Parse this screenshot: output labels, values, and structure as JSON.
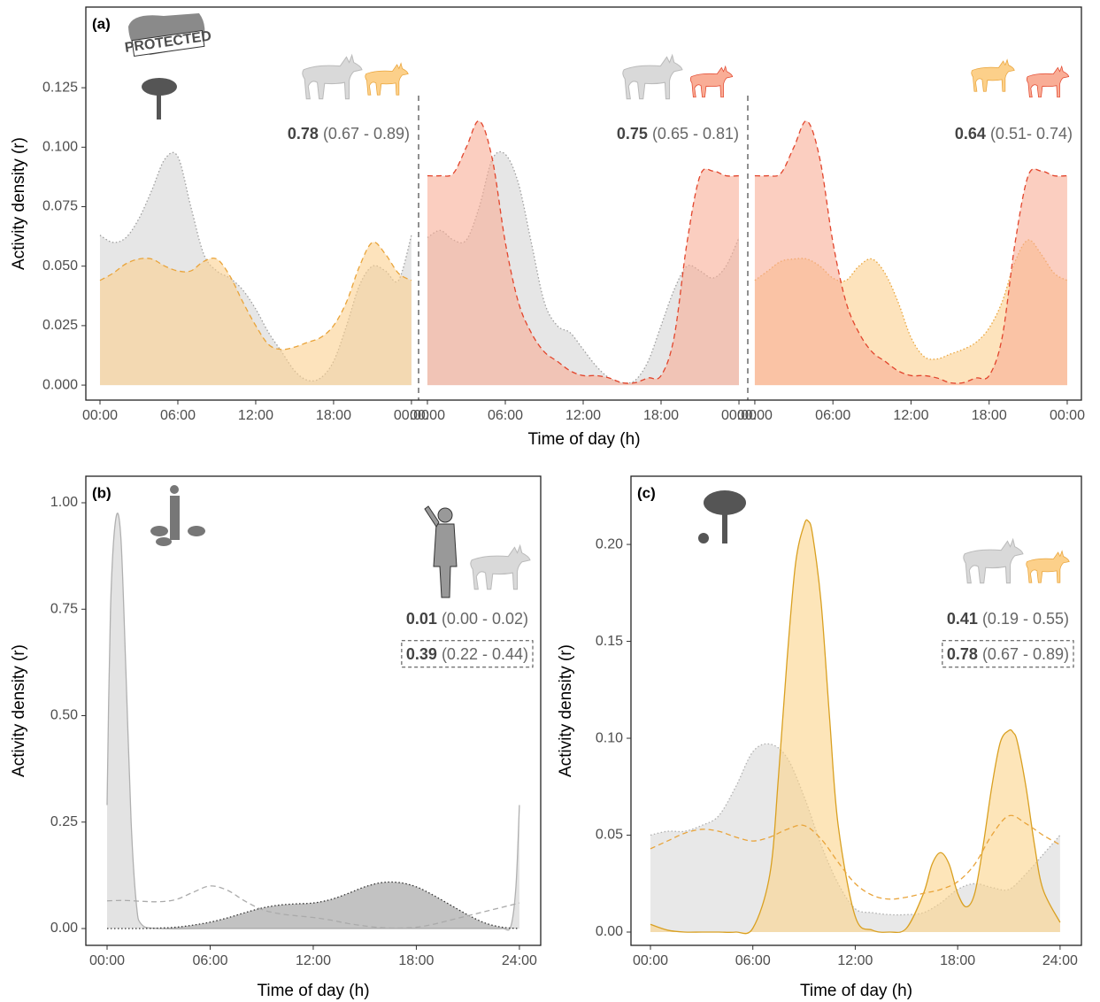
{
  "chart_data": [
    {
      "type": "area",
      "panel_label": "(a)",
      "ylabel": "Activity density (r)",
      "xlabel": "Time of day (h)",
      "icon_text": "PROTECTED",
      "ylim": [
        -0.0063,
        0.1589
      ],
      "yticks": [
        {
          "value": 0,
          "label": "0.000"
        },
        0.025,
        {
          "value": 0.05,
          "label": "0.050"
        },
        0.075,
        {
          "value": 0.1,
          "label": "0.100"
        },
        0.125
      ],
      "panels": [
        {
          "xlim": [
            -1.09,
            24.55
          ],
          "xticks": [
            {
              "value": 0,
              "label": "00:00"
            },
            {
              "value": 6,
              "label": "06:00"
            },
            {
              "value": 12,
              "label": "12:00"
            },
            {
              "value": 18,
              "label": "18:00"
            },
            {
              "value": 24,
              "label": "00:00"
            }
          ],
          "annotation": {
            "estimate": "0.78",
            "ci": "(0.67 - 0.89)"
          },
          "series": [
            {
              "color": "#9e9e9e",
              "fill_color": "#d6d6d6",
              "line": "dotted",
              "x": [
                0,
                1,
                2,
                3,
                4,
                5,
                6,
                7,
                8,
                9,
                10,
                11,
                12,
                13,
                14,
                15,
                16,
                17,
                18,
                19,
                20,
                21,
                22,
                23,
                24
              ],
              "values": [
                0.063,
                0.06,
                0.062,
                0.07,
                0.082,
                0.095,
                0.096,
                0.075,
                0.055,
                0.048,
                0.045,
                0.04,
                0.032,
                0.022,
                0.014,
                0.006,
                0.002,
                0.003,
                0.01,
                0.025,
                0.042,
                0.05,
                0.048,
                0.044,
                0.063
              ]
            },
            {
              "color": "#e9a43a",
              "fill_color": "#fbd08f",
              "line": "dashed",
              "x": [
                0,
                1,
                2,
                3,
                4,
                5,
                6,
                7,
                8,
                9,
                10,
                11,
                12,
                13,
                14,
                15,
                16,
                17,
                18,
                19,
                20,
                21,
                22,
                23,
                24
              ],
              "values": [
                0.044,
                0.047,
                0.051,
                0.053,
                0.053,
                0.05,
                0.048,
                0.048,
                0.052,
                0.053,
                0.046,
                0.035,
                0.025,
                0.017,
                0.015,
                0.016,
                0.018,
                0.02,
                0.025,
                0.035,
                0.05,
                0.06,
                0.055,
                0.047,
                0.044
              ]
            }
          ]
        },
        {
          "xlim": [
            -0.68,
            24.68
          ],
          "xticks": [
            {
              "value": 0,
              "label": "00:00"
            },
            {
              "value": 6,
              "label": "06:00"
            },
            {
              "value": 12,
              "label": "12:00"
            },
            {
              "value": 18,
              "label": "18:00"
            },
            {
              "value": 24,
              "label": "00:00"
            }
          ],
          "annotation": {
            "estimate": "0.75",
            "ci": "(0.65 - 0.81)"
          },
          "series": [
            {
              "color": "#9e9e9e",
              "fill_color": "#d6d6d6",
              "line": "dotted",
              "x": [
                0,
                1,
                2,
                3,
                4,
                5,
                6,
                7,
                8,
                9,
                10,
                11,
                12,
                13,
                14,
                15,
                16,
                17,
                18,
                19,
                20,
                21,
                22,
                23,
                24
              ],
              "values": [
                0.062,
                0.065,
                0.061,
                0.061,
                0.075,
                0.095,
                0.097,
                0.085,
                0.06,
                0.035,
                0.025,
                0.022,
                0.015,
                0.008,
                0.003,
                0.001,
                0.002,
                0.01,
                0.025,
                0.04,
                0.05,
                0.048,
                0.045,
                0.05,
                0.062
              ]
            },
            {
              "color": "#e2452c",
              "fill_color": "#f9ad96",
              "line": "dashed",
              "x": [
                0,
                1,
                2,
                3,
                4,
                5,
                6,
                7,
                8,
                9,
                10,
                11,
                12,
                13,
                14,
                15,
                16,
                17,
                18,
                19,
                20,
                21,
                22,
                23,
                24
              ],
              "values": [
                0.088,
                0.088,
                0.089,
                0.1,
                0.111,
                0.095,
                0.06,
                0.035,
                0.022,
                0.014,
                0.01,
                0.006,
                0.004,
                0.004,
                0.003,
                0.001,
                0.001,
                0.003,
                0.004,
                0.02,
                0.06,
                0.088,
                0.09,
                0.088,
                0.088
              ]
            }
          ]
        },
        {
          "xlim": [
            -0.54,
            25.09
          ],
          "xticks": [
            {
              "value": 0,
              "label": "00:00"
            },
            {
              "value": 6,
              "label": "06:00"
            },
            {
              "value": 12,
              "label": "12:00"
            },
            {
              "value": 18,
              "label": "18:00"
            },
            {
              "value": 24,
              "label": "00:00"
            }
          ],
          "annotation": {
            "estimate": "0.64",
            "ci": "(0.51- 0.74)"
          },
          "series": [
            {
              "color": "#e9a43a",
              "fill_color": "#fbd08f",
              "line": "dotted",
              "x": [
                0,
                1,
                2,
                3,
                4,
                5,
                6,
                7,
                8,
                9,
                10,
                11,
                12,
                13,
                14,
                15,
                16,
                17,
                18,
                19,
                20,
                21,
                22,
                23,
                24
              ],
              "values": [
                0.044,
                0.048,
                0.052,
                0.053,
                0.053,
                0.05,
                0.045,
                0.044,
                0.05,
                0.053,
                0.047,
                0.035,
                0.02,
                0.012,
                0.011,
                0.013,
                0.015,
                0.018,
                0.024,
                0.035,
                0.052,
                0.061,
                0.055,
                0.047,
                0.044
              ]
            },
            {
              "color": "#e2452c",
              "fill_color": "#f9ad96",
              "line": "dashed",
              "x": [
                0,
                1,
                2,
                3,
                4,
                5,
                6,
                7,
                8,
                9,
                10,
                11,
                12,
                13,
                14,
                15,
                16,
                17,
                18,
                19,
                20,
                21,
                22,
                23,
                24
              ],
              "values": [
                0.088,
                0.088,
                0.089,
                0.1,
                0.111,
                0.095,
                0.06,
                0.035,
                0.022,
                0.014,
                0.01,
                0.006,
                0.004,
                0.004,
                0.003,
                0.001,
                0.001,
                0.003,
                0.004,
                0.02,
                0.06,
                0.088,
                0.09,
                0.088,
                0.088
              ]
            }
          ]
        }
      ]
    },
    {
      "type": "area",
      "panel_label": "(b)",
      "ylabel": "Activity density (r)",
      "xlabel": "Time of day (h)",
      "xlim": [
        -1.236,
        25.24
      ],
      "ylim": [
        -0.0395,
        1.0624
      ],
      "xticks": [
        {
          "value": 0,
          "label": "00:00"
        },
        {
          "value": 6,
          "label": "06:00"
        },
        {
          "value": 12,
          "label": "12:00"
        },
        {
          "value": 18,
          "label": "18:00"
        },
        {
          "value": 24,
          "label": "24:00"
        }
      ],
      "yticks": [
        {
          "value": 0,
          "label": "0.00"
        },
        0.25,
        {
          "value": 0.5,
          "label": "0.50"
        },
        0.75,
        {
          "value": 1,
          "label": "1.00"
        }
      ],
      "annotations": [
        {
          "estimate": "0.01",
          "ci": "(0.00 - 0.02)",
          "boxed": false
        },
        {
          "estimate": "0.39",
          "ci": "(0.22 - 0.44)",
          "boxed": true
        }
      ],
      "series": [
        {
          "color": "#b0b0b0",
          "fill_color": "#d0d0d0",
          "line": "solid",
          "x": [
            0,
            0.2,
            0.5,
            0.8,
            1.1,
            1.4,
            1.7,
            2,
            3,
            6,
            12,
            18,
            21,
            22,
            23,
            23.5,
            23.8,
            24
          ],
          "values": [
            0.29,
            0.75,
            0.96,
            0.92,
            0.6,
            0.25,
            0.06,
            0.01,
            0,
            0,
            0,
            0,
            0,
            0,
            0,
            0.005,
            0.1,
            0.29
          ]
        },
        {
          "color": "#333333",
          "fill_color": "#9a9a9a",
          "line": "dotted",
          "x": [
            0,
            1,
            2,
            3,
            4,
            5,
            6,
            7,
            8,
            9,
            10,
            11,
            12,
            13,
            14,
            15,
            16,
            17,
            18,
            19,
            20,
            21,
            22,
            23,
            24
          ],
          "values": [
            0,
            0,
            0,
            0.001,
            0.003,
            0.008,
            0.015,
            0.025,
            0.037,
            0.048,
            0.055,
            0.058,
            0.06,
            0.068,
            0.082,
            0.098,
            0.108,
            0.108,
            0.098,
            0.078,
            0.055,
            0.032,
            0.013,
            0.003,
            0
          ]
        },
        {
          "color": "#aaaaaa",
          "fill_color": null,
          "line": "dashed",
          "x": [
            0,
            1,
            2,
            3,
            4,
            5,
            6,
            7,
            8,
            9,
            10,
            11,
            12,
            13,
            14,
            15,
            16,
            17,
            18,
            19,
            20,
            21,
            22,
            23,
            24
          ],
          "values": [
            0.065,
            0.066,
            0.064,
            0.063,
            0.068,
            0.085,
            0.1,
            0.09,
            0.065,
            0.045,
            0.035,
            0.03,
            0.026,
            0.02,
            0.012,
            0.006,
            0.002,
            0.001,
            0.003,
            0.01,
            0.02,
            0.03,
            0.04,
            0.05,
            0.06
          ]
        }
      ]
    },
    {
      "type": "area",
      "panel_label": "(c)",
      "ylabel": "Activity density (r)",
      "xlabel": "Time of day (h)",
      "xlim": [
        -1.14,
        25.25
      ],
      "ylim": [
        -0.00685,
        0.2352
      ],
      "xticks": [
        {
          "value": 0,
          "label": "00:00"
        },
        {
          "value": 6,
          "label": "06:00"
        },
        {
          "value": 12,
          "label": "12:00"
        },
        {
          "value": 18,
          "label": "18:00"
        },
        {
          "value": 24,
          "label": "24:00"
        }
      ],
      "yticks": [
        {
          "value": 0,
          "label": "0.00"
        },
        0.05,
        {
          "value": 0.1,
          "label": "0.10"
        },
        0.15,
        {
          "value": 0.2,
          "label": "0.20"
        }
      ],
      "annotations": [
        {
          "estimate": "0.41",
          "ci": "(0.19 - 0.55)",
          "boxed": false
        },
        {
          "estimate": "0.78",
          "ci": "(0.67 - 0.89)",
          "boxed": true
        }
      ],
      "series": [
        {
          "color": "#b0b0b0",
          "fill_color": "#d8d8d8",
          "line": "dotted",
          "x": [
            0,
            1,
            2,
            3,
            4,
            5,
            6,
            7,
            8,
            9,
            10,
            11,
            12,
            13,
            14,
            15,
            16,
            17,
            18,
            19,
            20,
            21,
            22,
            23,
            24
          ],
          "values": [
            0.05,
            0.052,
            0.052,
            0.055,
            0.06,
            0.075,
            0.093,
            0.097,
            0.09,
            0.07,
            0.045,
            0.025,
            0.012,
            0.01,
            0.009,
            0.009,
            0.01,
            0.015,
            0.022,
            0.025,
            0.023,
            0.022,
            0.03,
            0.04,
            0.05
          ]
        },
        {
          "color": "#d9a021",
          "fill_color": "#fbd38a",
          "line": "solid",
          "x": [
            0,
            1,
            2,
            3,
            4,
            5,
            6,
            7,
            7.5,
            8,
            8.5,
            9,
            9.25,
            9.5,
            10,
            10.5,
            11,
            12,
            13,
            14,
            15,
            16,
            16.5,
            17,
            17.5,
            18,
            18.5,
            19,
            19.5,
            20,
            20.5,
            21,
            21.25,
            21.5,
            22,
            22.5,
            23,
            24
          ],
          "values": [
            0.004,
            0.001,
            0,
            0,
            0,
            0,
            0.002,
            0.03,
            0.08,
            0.14,
            0.19,
            0.21,
            0.212,
            0.205,
            0.17,
            0.11,
            0.055,
            0.008,
            0.001,
            0,
            0.002,
            0.02,
            0.035,
            0.041,
            0.035,
            0.02,
            0.013,
            0.02,
            0.045,
            0.075,
            0.098,
            0.104,
            0.103,
            0.098,
            0.075,
            0.045,
            0.022,
            0.005
          ]
        },
        {
          "color": "#e9a43a",
          "fill_color": null,
          "line": "dashed",
          "x": [
            0,
            1,
            2,
            3,
            4,
            5,
            6,
            7,
            8,
            9,
            10,
            11,
            12,
            13,
            14,
            15,
            16,
            17,
            18,
            19,
            20,
            21,
            22,
            23,
            24
          ],
          "values": [
            0.043,
            0.047,
            0.051,
            0.053,
            0.052,
            0.049,
            0.047,
            0.049,
            0.053,
            0.055,
            0.048,
            0.036,
            0.025,
            0.019,
            0.017,
            0.018,
            0.02,
            0.022,
            0.026,
            0.035,
            0.05,
            0.06,
            0.056,
            0.05,
            0.045
          ]
        }
      ]
    }
  ]
}
